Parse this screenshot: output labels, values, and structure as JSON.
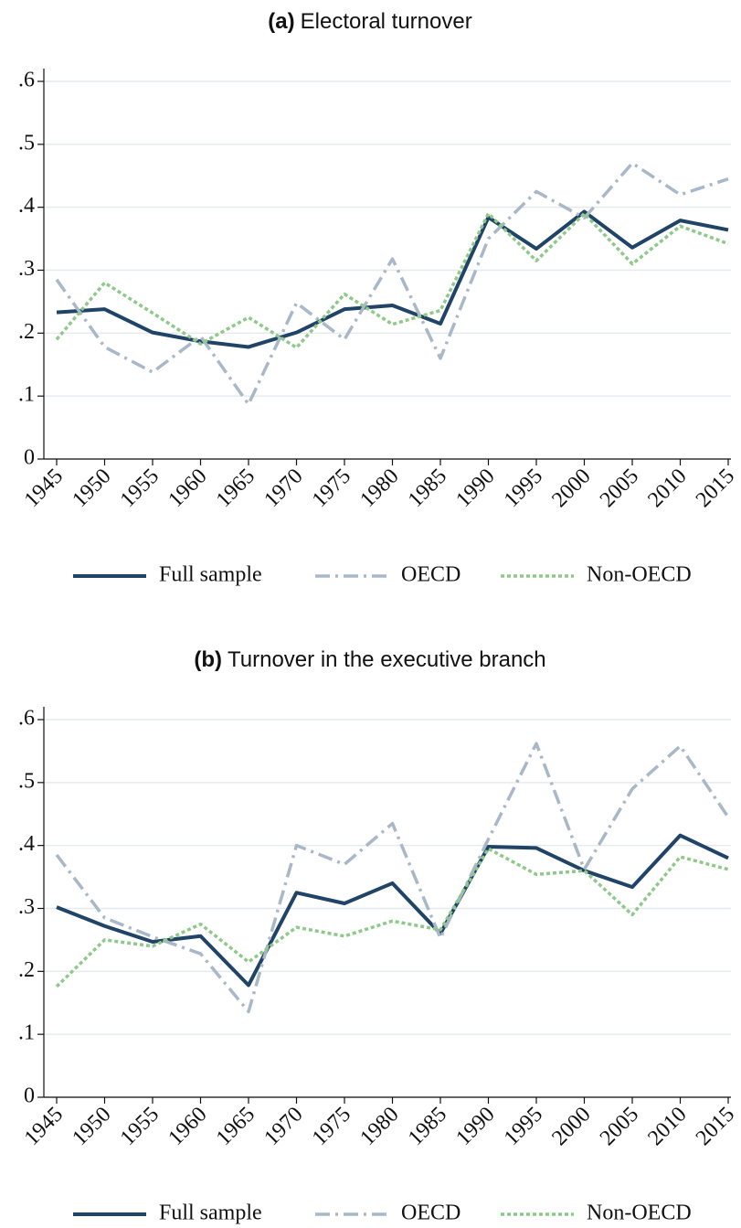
{
  "chart_data": [
    {
      "type": "line",
      "panel": "(a)",
      "title": "Electoral turnover",
      "x": [
        1945,
        1950,
        1955,
        1960,
        1965,
        1970,
        1975,
        1980,
        1985,
        1990,
        1995,
        2000,
        2005,
        2010,
        2015
      ],
      "xlim": [
        1945,
        2015
      ],
      "xticks": [
        1945,
        1950,
        1955,
        1960,
        1965,
        1970,
        1975,
        1980,
        1985,
        1990,
        1995,
        2000,
        2005,
        2010,
        2015
      ],
      "ylim": [
        0,
        0.6
      ],
      "yticks": [
        0,
        {
          "value": 0.1,
          "label": ".1"
        },
        {
          "value": 0.2,
          "label": ".2"
        },
        {
          "value": 0.3,
          "label": ".3"
        },
        {
          "value": 0.4,
          "label": ".4"
        },
        {
          "value": 0.5,
          "label": ".5"
        },
        {
          "value": 0.6,
          "label": ".6"
        }
      ],
      "grid": true,
      "legend": "bottom",
      "series": [
        {
          "name": "Full sample",
          "color": "#1f4467",
          "dash": "solid",
          "values": [
            0.233,
            0.238,
            0.201,
            0.187,
            0.178,
            0.201,
            0.238,
            0.244,
            0.215,
            0.384,
            0.334,
            0.393,
            0.336,
            0.379,
            0.364
          ]
        },
        {
          "name": "OECD",
          "color": "#a9b8c8",
          "dash": "dashdot",
          "values": [
            0.285,
            0.178,
            0.138,
            0.195,
            0.087,
            0.248,
            0.19,
            0.318,
            0.16,
            0.35,
            0.425,
            0.383,
            0.47,
            0.42,
            0.445
          ]
        },
        {
          "name": "Non-OECD",
          "color": "#8fc98a",
          "dash": "dot",
          "values": [
            0.19,
            0.28,
            0.232,
            0.183,
            0.225,
            0.177,
            0.262,
            0.214,
            0.236,
            0.39,
            0.315,
            0.39,
            0.31,
            0.37,
            0.342
          ]
        }
      ]
    },
    {
      "type": "line",
      "panel": "(b)",
      "title": "Turnover in the executive branch",
      "x": [
        1945,
        1950,
        1955,
        1960,
        1965,
        1970,
        1975,
        1980,
        1985,
        1990,
        1995,
        2000,
        2005,
        2010,
        2015
      ],
      "xlim": [
        1945,
        2015
      ],
      "xticks": [
        1945,
        1950,
        1955,
        1960,
        1965,
        1970,
        1975,
        1980,
        1985,
        1990,
        1995,
        2000,
        2005,
        2010,
        2015
      ],
      "ylim": [
        0,
        0.6
      ],
      "yticks": [
        0,
        {
          "value": 0.1,
          "label": ".1"
        },
        {
          "value": 0.2,
          "label": ".2"
        },
        {
          "value": 0.3,
          "label": ".3"
        },
        {
          "value": 0.4,
          "label": ".4"
        },
        {
          "value": 0.5,
          "label": ".5"
        },
        {
          "value": 0.6,
          "label": ".6"
        }
      ],
      "grid": true,
      "legend": "bottom",
      "series": [
        {
          "name": "Full sample",
          "color": "#1f4467",
          "dash": "solid",
          "values": [
            0.302,
            0.272,
            0.247,
            0.256,
            0.178,
            0.325,
            0.308,
            0.34,
            0.26,
            0.398,
            0.396,
            0.36,
            0.334,
            0.416,
            0.38
          ]
        },
        {
          "name": "OECD",
          "color": "#a9b8c8",
          "dash": "dashdot",
          "values": [
            0.385,
            0.285,
            0.255,
            0.228,
            0.136,
            0.4,
            0.37,
            0.435,
            0.253,
            0.41,
            0.562,
            0.362,
            0.49,
            0.558,
            0.445
          ]
        },
        {
          "name": "Non-OECD",
          "color": "#8fc98a",
          "dash": "dot",
          "values": [
            0.176,
            0.25,
            0.24,
            0.275,
            0.215,
            0.27,
            0.256,
            0.28,
            0.266,
            0.395,
            0.354,
            0.36,
            0.29,
            0.382,
            0.362
          ]
        }
      ]
    }
  ]
}
